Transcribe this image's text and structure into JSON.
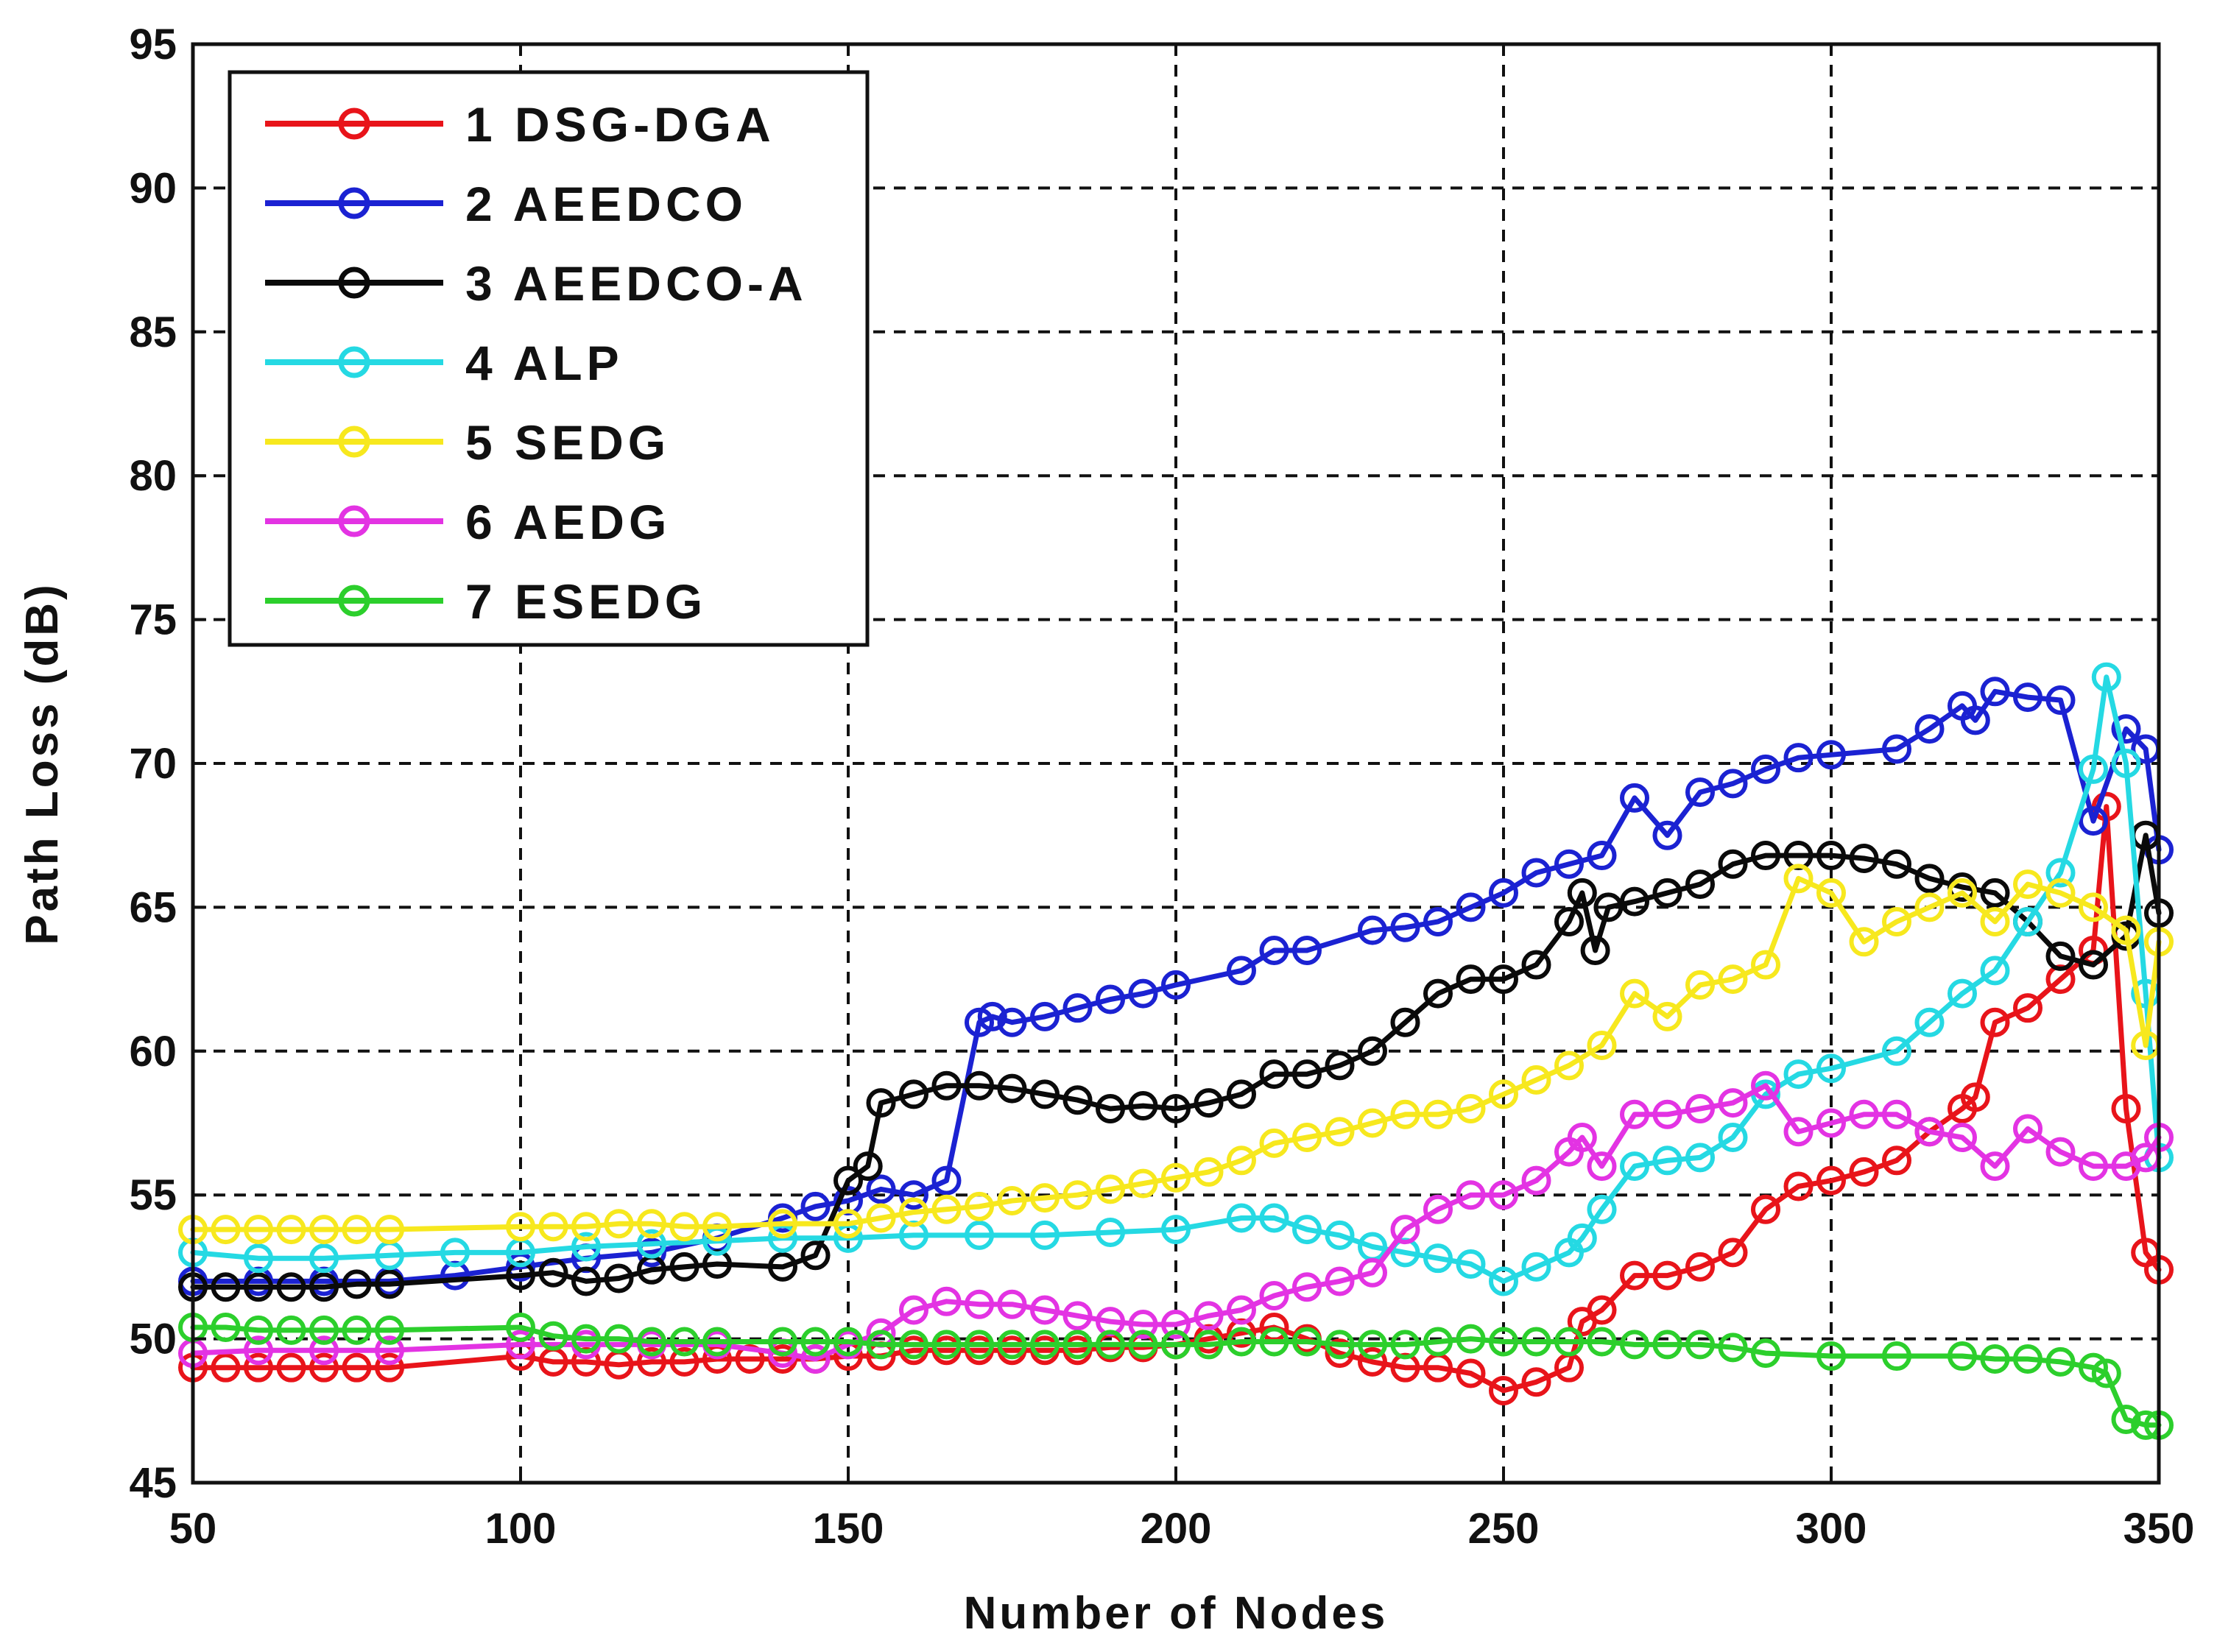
{
  "chart_data": {
    "type": "line",
    "title": "",
    "xlabel": "Number of Nodes",
    "ylabel": "Path Loss (dB)",
    "xlim": [
      50,
      350
    ],
    "ylim": [
      45,
      95
    ],
    "xticks": [
      "50",
      "100",
      "150",
      "200",
      "250",
      "300",
      "350"
    ],
    "yticks": [
      "45",
      "50",
      "55",
      "60",
      "65",
      "70",
      "75",
      "80",
      "85",
      "90",
      "95"
    ],
    "grid": true,
    "legend_position": "top-left",
    "series": [
      {
        "name": "1 DSG-DGA",
        "color": "#e8141a",
        "x": [
          50,
          55,
          60,
          65,
          70,
          75,
          80,
          100,
          105,
          110,
          115,
          120,
          125,
          130,
          135,
          140,
          145,
          150,
          155,
          160,
          165,
          170,
          175,
          180,
          185,
          190,
          195,
          200,
          205,
          210,
          215,
          220,
          225,
          230,
          235,
          240,
          245,
          250,
          255,
          260,
          262,
          265,
          270,
          275,
          280,
          285,
          290,
          295,
          300,
          305,
          310,
          315,
          320,
          322,
          325,
          330,
          335,
          340,
          342,
          345,
          348,
          350
        ],
        "y": [
          49.0,
          49.0,
          49.0,
          49.0,
          49.0,
          49.0,
          49.0,
          49.4,
          49.2,
          49.2,
          49.1,
          49.2,
          49.2,
          49.3,
          49.3,
          49.3,
          49.3,
          49.4,
          49.4,
          49.6,
          49.6,
          49.6,
          49.6,
          49.6,
          49.6,
          49.7,
          49.7,
          49.8,
          50.0,
          50.2,
          50.4,
          50.0,
          49.5,
          49.2,
          49.0,
          49.0,
          48.8,
          48.2,
          48.5,
          49.0,
          50.6,
          51.0,
          52.2,
          52.2,
          52.5,
          53.0,
          54.5,
          55.3,
          55.5,
          55.8,
          56.2,
          57.2,
          58.0,
          58.4,
          61.0,
          61.5,
          62.5,
          63.5,
          68.5,
          58.0,
          53.0,
          52.4
        ]
      },
      {
        "name": "2 AEEDCO",
        "color": "#1b22d2",
        "x": [
          50,
          60,
          70,
          80,
          90,
          100,
          110,
          120,
          130,
          140,
          145,
          150,
          155,
          160,
          165,
          170,
          172,
          175,
          180,
          185,
          190,
          195,
          200,
          210,
          215,
          220,
          230,
          235,
          240,
          245,
          250,
          255,
          260,
          265,
          270,
          275,
          280,
          285,
          290,
          295,
          300,
          310,
          315,
          320,
          322,
          325,
          330,
          335,
          340,
          345,
          348,
          350
        ],
        "y": [
          52.0,
          52.0,
          52.0,
          52.0,
          52.2,
          52.5,
          52.8,
          53.0,
          53.5,
          54.2,
          54.6,
          54.8,
          55.2,
          55.0,
          55.5,
          61.0,
          61.2,
          61.0,
          61.2,
          61.5,
          61.8,
          62.0,
          62.3,
          62.8,
          63.5,
          63.5,
          64.2,
          64.3,
          64.5,
          65.0,
          65.5,
          66.2,
          66.5,
          66.8,
          68.8,
          67.5,
          69.0,
          69.3,
          69.8,
          70.2,
          70.3,
          70.5,
          71.2,
          72.0,
          71.5,
          72.5,
          72.3,
          72.2,
          68.0,
          71.2,
          70.5,
          67.0
        ]
      },
      {
        "name": "3 AEEDCO-A",
        "color": "#0a0a0a",
        "x": [
          50,
          55,
          60,
          65,
          70,
          75,
          80,
          100,
          105,
          110,
          115,
          120,
          125,
          130,
          140,
          145,
          150,
          153,
          155,
          160,
          165,
          170,
          175,
          180,
          185,
          190,
          195,
          200,
          205,
          210,
          215,
          220,
          225,
          230,
          235,
          240,
          245,
          250,
          255,
          260,
          262,
          264,
          266,
          270,
          275,
          280,
          285,
          290,
          295,
          300,
          305,
          310,
          315,
          320,
          325,
          330,
          335,
          340,
          345,
          348,
          350
        ],
        "y": [
          51.8,
          51.8,
          51.8,
          51.8,
          51.8,
          51.9,
          51.9,
          52.2,
          52.3,
          52.0,
          52.1,
          52.4,
          52.5,
          52.6,
          52.5,
          52.9,
          55.5,
          56.0,
          58.2,
          58.5,
          58.8,
          58.8,
          58.7,
          58.5,
          58.3,
          58.0,
          58.1,
          58.0,
          58.2,
          58.5,
          59.2,
          59.2,
          59.5,
          60.0,
          61.0,
          62.0,
          62.5,
          62.5,
          63.0,
          64.5,
          65.5,
          63.5,
          65.0,
          65.2,
          65.5,
          65.8,
          66.5,
          66.8,
          66.8,
          66.8,
          66.7,
          66.5,
          66.0,
          65.7,
          65.5,
          64.5,
          63.3,
          63.0,
          64.0,
          67.5,
          64.8
        ]
      },
      {
        "name": "4 ALP",
        "color": "#25d9e3",
        "x": [
          50,
          60,
          70,
          80,
          90,
          100,
          110,
          120,
          130,
          140,
          150,
          160,
          170,
          180,
          190,
          200,
          210,
          215,
          220,
          225,
          230,
          235,
          240,
          245,
          250,
          255,
          260,
          262,
          265,
          270,
          275,
          280,
          285,
          290,
          295,
          300,
          310,
          315,
          320,
          325,
          330,
          335,
          340,
          342,
          345,
          348,
          350
        ],
        "y": [
          53.0,
          52.8,
          52.8,
          52.9,
          53.0,
          53.0,
          53.2,
          53.3,
          53.4,
          53.5,
          53.5,
          53.6,
          53.6,
          53.6,
          53.7,
          53.8,
          54.2,
          54.2,
          53.8,
          53.6,
          53.2,
          53.0,
          52.8,
          52.6,
          52.0,
          52.5,
          53.0,
          53.5,
          54.5,
          56.0,
          56.2,
          56.3,
          57.0,
          58.5,
          59.2,
          59.4,
          60.0,
          61.0,
          62.0,
          62.8,
          64.5,
          66.2,
          69.8,
          73.0,
          70.0,
          62.0,
          56.3
        ]
      },
      {
        "name": "5 SEDG",
        "color": "#f7e81e",
        "x": [
          50,
          55,
          60,
          65,
          70,
          75,
          80,
          100,
          105,
          110,
          115,
          120,
          125,
          130,
          140,
          150,
          155,
          160,
          165,
          170,
          175,
          180,
          185,
          190,
          195,
          200,
          205,
          210,
          215,
          220,
          225,
          230,
          235,
          240,
          245,
          250,
          255,
          260,
          265,
          270,
          275,
          280,
          285,
          290,
          295,
          300,
          305,
          310,
          315,
          320,
          325,
          330,
          335,
          340,
          345,
          348,
          350
        ],
        "y": [
          53.8,
          53.8,
          53.8,
          53.8,
          53.8,
          53.8,
          53.8,
          53.9,
          53.9,
          53.9,
          54.0,
          54.0,
          53.9,
          53.9,
          54.0,
          54.0,
          54.2,
          54.4,
          54.5,
          54.6,
          54.8,
          54.9,
          55.0,
          55.2,
          55.4,
          55.6,
          55.8,
          56.2,
          56.8,
          57.0,
          57.2,
          57.5,
          57.8,
          57.8,
          58.0,
          58.5,
          59.0,
          59.5,
          60.2,
          62.0,
          61.2,
          62.3,
          62.5,
          63.0,
          66.0,
          65.5,
          63.8,
          64.5,
          65.0,
          65.5,
          64.5,
          65.8,
          65.5,
          65.0,
          64.2,
          60.2,
          63.8
        ]
      },
      {
        "name": "6 AEDG",
        "color": "#e333e3",
        "x": [
          50,
          60,
          70,
          80,
          100,
          110,
          120,
          130,
          140,
          145,
          150,
          155,
          160,
          165,
          170,
          175,
          180,
          185,
          190,
          195,
          200,
          205,
          210,
          215,
          220,
          225,
          230,
          235,
          240,
          245,
          250,
          255,
          260,
          262,
          265,
          270,
          275,
          280,
          285,
          290,
          295,
          300,
          305,
          310,
          315,
          320,
          325,
          330,
          335,
          340,
          345,
          348,
          350
        ],
        "y": [
          49.5,
          49.6,
          49.6,
          49.6,
          49.8,
          49.8,
          49.8,
          49.8,
          49.5,
          49.3,
          49.8,
          50.2,
          51.0,
          51.3,
          51.2,
          51.2,
          51.0,
          50.8,
          50.6,
          50.5,
          50.5,
          50.8,
          51.0,
          51.5,
          51.8,
          52.0,
          52.3,
          53.8,
          54.5,
          55.0,
          55.0,
          55.5,
          56.5,
          57.0,
          56.0,
          57.8,
          57.8,
          58.0,
          58.2,
          58.8,
          57.2,
          57.5,
          57.8,
          57.8,
          57.2,
          57.0,
          56.0,
          57.3,
          56.5,
          56.0,
          56.0,
          56.3,
          57.0
        ]
      },
      {
        "name": "7 ESEDG",
        "color": "#2ccf2c",
        "x": [
          50,
          55,
          60,
          65,
          70,
          75,
          80,
          100,
          105,
          110,
          115,
          120,
          125,
          130,
          140,
          145,
          150,
          155,
          160,
          165,
          170,
          175,
          180,
          185,
          190,
          195,
          200,
          205,
          210,
          215,
          220,
          225,
          230,
          235,
          240,
          245,
          250,
          255,
          260,
          265,
          270,
          275,
          280,
          285,
          290,
          300,
          310,
          320,
          325,
          330,
          335,
          340,
          342,
          345,
          348,
          350
        ],
        "y": [
          50.4,
          50.4,
          50.3,
          50.3,
          50.3,
          50.3,
          50.3,
          50.4,
          50.1,
          50.0,
          50.0,
          49.9,
          49.9,
          49.9,
          49.9,
          49.9,
          49.9,
          49.8,
          49.8,
          49.8,
          49.8,
          49.8,
          49.8,
          49.8,
          49.8,
          49.8,
          49.8,
          49.8,
          49.9,
          49.9,
          49.9,
          49.8,
          49.8,
          49.8,
          49.9,
          50.0,
          49.9,
          49.9,
          49.9,
          49.9,
          49.8,
          49.8,
          49.8,
          49.7,
          49.5,
          49.4,
          49.4,
          49.4,
          49.3,
          49.3,
          49.2,
          49.0,
          48.8,
          47.2,
          47.0,
          47.0
        ]
      }
    ]
  }
}
